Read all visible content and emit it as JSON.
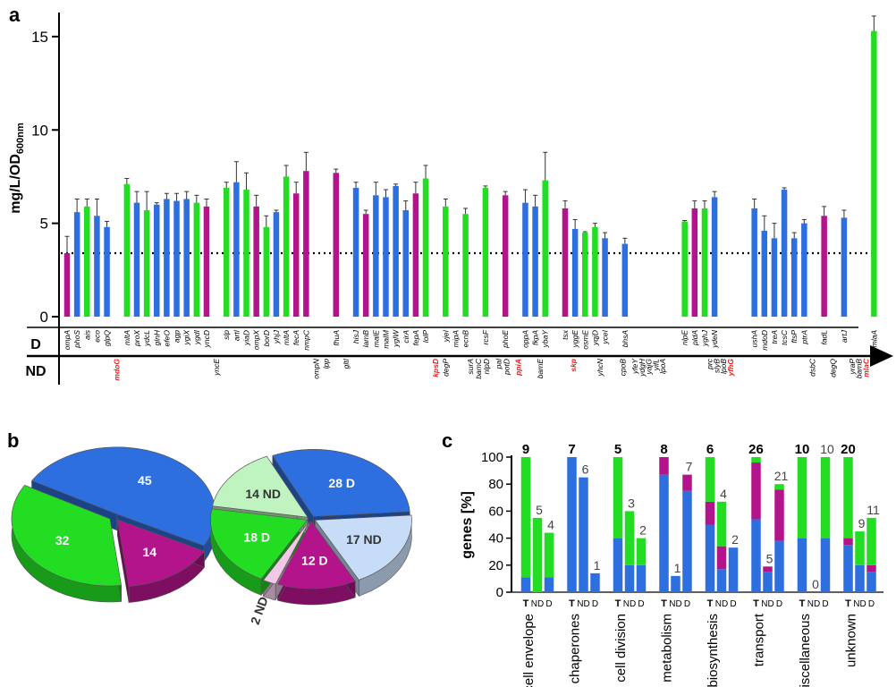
{
  "colors": {
    "blue": "#2e6fe0",
    "green": "#22dd22",
    "magenta": "#b3148b",
    "light_green": "#bff3bf",
    "light_blue": "#c6dcf7",
    "light_pink": "#f2c7e8",
    "red_label": "#e02020"
  },
  "panels": {
    "a": "a",
    "b": "b",
    "c": "c"
  },
  "chart_data": [
    {
      "panel": "a",
      "type": "bar",
      "ylabel": "mg/L/OD",
      "ylabel_sub": "600nm",
      "ylim": [
        0,
        16
      ],
      "yticks": [
        0,
        5,
        10,
        15
      ],
      "threshold": 3.4,
      "row_labels": {
        "d": "D",
        "nd": "ND"
      },
      "bars": [
        {
          "g": "ompA",
          "v": 3.4,
          "e": 0.9,
          "c": "magenta"
        },
        {
          "g": "phoS",
          "v": 5.6,
          "e": 0.7,
          "c": "blue"
        },
        {
          "g": "ais",
          "v": 5.9,
          "e": 0.4,
          "c": "green"
        },
        {
          "g": "eco",
          "v": 5.4,
          "e": 0.9,
          "c": "blue"
        },
        {
          "g": "glpQ",
          "v": 4.8,
          "e": 0.3,
          "c": "blue"
        },
        {
          "g": "",
          "v": 0,
          "e": 0,
          "c": "none"
        },
        {
          "g": "mltA",
          "v": 7.1,
          "e": 0.3,
          "c": "green"
        },
        {
          "g": "proX",
          "v": 6.1,
          "e": 0.6,
          "c": "blue"
        },
        {
          "g": "ydcL",
          "v": 5.7,
          "e": 1.0,
          "c": "green"
        },
        {
          "g": "glnH",
          "v": 6.0,
          "e": 0.1,
          "c": "blue"
        },
        {
          "g": "efeO",
          "v": 6.3,
          "e": 0.3,
          "c": "blue"
        },
        {
          "g": "agp",
          "v": 6.2,
          "e": 0.4,
          "c": "blue"
        },
        {
          "g": "ygiX",
          "v": 6.3,
          "e": 0.4,
          "c": "blue"
        },
        {
          "g": "ygdI",
          "v": 6.1,
          "e": 0.4,
          "c": "green"
        },
        {
          "g": "yncD",
          "v": 5.9,
          "e": 0.4,
          "c": "magenta"
        },
        {
          "g": "",
          "v": 0,
          "e": 0,
          "c": "none"
        },
        {
          "g": "slp",
          "v": 6.9,
          "e": 0.3,
          "c": "green"
        },
        {
          "g": "artI",
          "v": 7.2,
          "e": 1.1,
          "c": "blue"
        },
        {
          "g": "yiaD",
          "v": 6.8,
          "e": 0.9,
          "c": "green"
        },
        {
          "g": "ompX",
          "v": 5.9,
          "e": 0.6,
          "c": "magenta"
        },
        {
          "g": "borD",
          "v": 4.8,
          "e": 0.6,
          "c": "green"
        },
        {
          "g": "yhjJ",
          "v": 5.6,
          "e": 0.1,
          "c": "blue"
        },
        {
          "g": "mltA",
          "v": 7.5,
          "e": 0.6,
          "c": "green"
        },
        {
          "g": "fecA",
          "v": 6.6,
          "e": 0.6,
          "c": "magenta"
        },
        {
          "g": "nmpC",
          "v": 7.8,
          "e": 1.0,
          "c": "magenta"
        },
        {
          "g": "",
          "v": 0,
          "e": 0,
          "c": "none"
        },
        {
          "g": "",
          "v": 0,
          "e": 0,
          "c": "none"
        },
        {
          "g": "fhuA",
          "v": 7.7,
          "e": 0.2,
          "c": "magenta"
        },
        {
          "g": "",
          "v": 0,
          "e": 0,
          "c": "none"
        },
        {
          "g": "hisJ",
          "v": 6.9,
          "e": 0.3,
          "c": "blue"
        },
        {
          "g": "lamB",
          "v": 5.5,
          "e": 0.2,
          "c": "magenta"
        },
        {
          "g": "malE",
          "v": 6.5,
          "e": 0.7,
          "c": "blue"
        },
        {
          "g": "malM",
          "v": 6.4,
          "e": 0.4,
          "c": "blue"
        },
        {
          "g": "yglW",
          "v": 7.0,
          "e": 0.1,
          "c": "blue"
        },
        {
          "g": "cirA",
          "v": 5.7,
          "e": 0.5,
          "c": "blue"
        },
        {
          "g": "fepA",
          "v": 6.6,
          "e": 0.6,
          "c": "magenta"
        },
        {
          "g": "lolP",
          "v": 7.4,
          "e": 0.7,
          "c": "green"
        },
        {
          "g": "",
          "v": 0,
          "e": 0,
          "c": "none"
        },
        {
          "g": "yjeI",
          "v": 5.9,
          "e": 0.4,
          "c": "green"
        },
        {
          "g": "mipA",
          "v": 0,
          "e": 0,
          "c": "none"
        },
        {
          "g": "ecnB",
          "v": 5.5,
          "e": 0.3,
          "c": "green"
        },
        {
          "g": "",
          "v": 0,
          "e": 0,
          "c": "none"
        },
        {
          "g": "rcsF",
          "v": 6.9,
          "e": 0.1,
          "c": "green"
        },
        {
          "g": "",
          "v": 0,
          "e": 0,
          "c": "none"
        },
        {
          "g": "phoE",
          "v": 6.5,
          "e": 0.2,
          "c": "magenta"
        },
        {
          "g": "",
          "v": 0,
          "e": 0,
          "c": "none"
        },
        {
          "g": "oppA",
          "v": 6.1,
          "e": 0.7,
          "c": "blue"
        },
        {
          "g": "fkpA",
          "v": 5.9,
          "e": 0.6,
          "c": "blue"
        },
        {
          "g": "ybaY",
          "v": 7.3,
          "e": 1.5,
          "c": "green"
        },
        {
          "g": "",
          "v": 0,
          "e": 0,
          "c": "none"
        },
        {
          "g": "tsx",
          "v": 5.8,
          "e": 0.4,
          "c": "magenta"
        },
        {
          "g": "yggE",
          "v": 4.7,
          "e": 0.5,
          "c": "blue"
        },
        {
          "g": "osmE",
          "v": 4.5,
          "e": 0.05,
          "c": "green"
        },
        {
          "g": "yqjD",
          "v": 4.8,
          "e": 0.2,
          "c": "green"
        },
        {
          "g": "yceI",
          "v": 4.2,
          "e": 0.3,
          "c": "blue"
        },
        {
          "g": "",
          "v": 0,
          "e": 0,
          "c": "none"
        },
        {
          "g": "bhsA",
          "v": 3.9,
          "e": 0.3,
          "c": "blue"
        },
        {
          "g": "",
          "v": 0,
          "e": 0,
          "c": "none"
        },
        {
          "g": "",
          "v": 0,
          "e": 0,
          "c": "none"
        },
        {
          "g": "",
          "v": 0,
          "e": 0,
          "c": "none"
        },
        {
          "g": "",
          "v": 0,
          "e": 0,
          "c": "none"
        },
        {
          "g": "",
          "v": 0,
          "e": 0,
          "c": "none"
        },
        {
          "g": "nlpE",
          "v": 5.1,
          "e": 0.05,
          "c": "green"
        },
        {
          "g": "pldA",
          "v": 5.8,
          "e": 0.4,
          "c": "magenta"
        },
        {
          "g": "yghJ",
          "v": 5.8,
          "e": 0.4,
          "c": "green"
        },
        {
          "g": "ydeN",
          "v": 6.4,
          "e": 0.3,
          "c": "blue"
        },
        {
          "g": "",
          "v": 0,
          "e": 0,
          "c": "none"
        },
        {
          "g": "",
          "v": 0,
          "e": 0,
          "c": "none"
        },
        {
          "g": "",
          "v": 0,
          "e": 0,
          "c": "none"
        },
        {
          "g": "ushA",
          "v": 5.8,
          "e": 0.5,
          "c": "blue"
        },
        {
          "g": "mdoD",
          "v": 4.6,
          "e": 0.8,
          "c": "blue"
        },
        {
          "g": "treA",
          "v": 4.2,
          "e": 0.8,
          "c": "blue"
        },
        {
          "g": "tcsC",
          "v": 6.8,
          "e": 0.1,
          "c": "blue"
        },
        {
          "g": "ftsP",
          "v": 4.2,
          "e": 0.3,
          "c": "blue"
        },
        {
          "g": "ptrA",
          "v": 5.0,
          "e": 0.2,
          "c": "blue"
        },
        {
          "g": "",
          "v": 0,
          "e": 0,
          "c": "none"
        },
        {
          "g": "fadL",
          "v": 5.4,
          "e": 0.5,
          "c": "magenta"
        },
        {
          "g": "",
          "v": 0,
          "e": 0,
          "c": "none"
        },
        {
          "g": "artJ",
          "v": 5.3,
          "e": 0.4,
          "c": "blue"
        },
        {
          "g": "",
          "v": 0,
          "e": 0,
          "c": "none"
        },
        {
          "g": "",
          "v": 0,
          "e": 0,
          "c": "none"
        },
        {
          "g": "mlaA",
          "v": 15.3,
          "e": 0.8,
          "c": "green"
        }
      ],
      "nd_labels": [
        {
          "g": "mdoG",
          "i": 5,
          "red": true
        },
        {
          "g": "yncE",
          "i": 15,
          "red": false
        },
        {
          "g": "ompN",
          "i": 25,
          "red": false
        },
        {
          "g": "lpp",
          "i": 26,
          "red": false
        },
        {
          "g": "gltI",
          "i": 28,
          "red": false
        },
        {
          "g": "kpsD",
          "i": 37,
          "red": true
        },
        {
          "g": "degP",
          "i": 38,
          "red": false
        },
        {
          "g": "surA",
          "i": 40.5,
          "red": false
        },
        {
          "g": "bamC",
          "i": 41.3,
          "red": false
        },
        {
          "g": "nlpD",
          "i": 42.1,
          "red": false
        },
        {
          "g": "pal",
          "i": 43.3,
          "red": false
        },
        {
          "g": "potD",
          "i": 44.1,
          "red": false
        },
        {
          "g": "ppiA",
          "i": 45.3,
          "red": true
        },
        {
          "g": "bamE",
          "i": 47.5,
          "red": false
        },
        {
          "g": "skp",
          "i": 50.8,
          "red": true
        },
        {
          "g": "yhcN",
          "i": 53.5,
          "red": false
        },
        {
          "g": "cpoB",
          "i": 55.8,
          "red": false
        },
        {
          "g": "yfeY",
          "i": 57,
          "red": false
        },
        {
          "g": "ydgH",
          "i": 57.7,
          "red": false
        },
        {
          "g": "yajG",
          "i": 58.4,
          "red": false
        },
        {
          "g": "yifL",
          "i": 59.1,
          "red": false
        },
        {
          "g": "lpoA",
          "i": 59.8,
          "red": false
        },
        {
          "g": "prc",
          "i": 64.5,
          "red": false
        },
        {
          "g": "slyB",
          "i": 65.2,
          "red": false
        },
        {
          "g": "lpoB",
          "i": 65.9,
          "red": false
        },
        {
          "g": "yfhG",
          "i": 66.6,
          "red": true
        },
        {
          "g": "dsbC",
          "i": 74.8,
          "red": false
        },
        {
          "g": "degQ",
          "i": 76.9,
          "red": false
        },
        {
          "g": "yraP",
          "i": 78.8,
          "red": false
        },
        {
          "g": "bamB",
          "i": 79.5,
          "red": false
        },
        {
          "g": "mlaC",
          "i": 80.2,
          "red": true
        }
      ]
    },
    {
      "panel": "b",
      "type": "pie",
      "pies": [
        {
          "slices": [
            {
              "label": "45",
              "value": 45,
              "color": "blue"
            },
            {
              "label": "14",
              "value": 14,
              "color": "magenta"
            },
            {
              "label": "32",
              "value": 32,
              "color": "green"
            }
          ]
        },
        {
          "slices": [
            {
              "label": "28 D",
              "value": 28,
              "color": "blue"
            },
            {
              "label": "17 ND",
              "value": 17,
              "color": "light_blue"
            },
            {
              "label": "12 D",
              "value": 12,
              "color": "magenta"
            },
            {
              "label": "2 ND",
              "value": 2,
              "color": "light_pink"
            },
            {
              "label": "18 D",
              "value": 18,
              "color": "green"
            },
            {
              "label": "14 ND",
              "value": 14,
              "color": "light_green"
            }
          ]
        }
      ]
    },
    {
      "panel": "c",
      "type": "bar",
      "stacked": true,
      "ylabel": "genes [%]",
      "ylim": [
        0,
        100
      ],
      "yticks": [
        0,
        20,
        40,
        60,
        80,
        100
      ],
      "bar_labels": [
        "T",
        "ND",
        "D"
      ],
      "groups": [
        {
          "name": "cell envelope",
          "counts": [
            "9",
            "5",
            "4"
          ],
          "bars": [
            {
              "blue": 11,
              "magenta": 0,
              "green": 89,
              "height": 100
            },
            {
              "blue": 0,
              "magenta": 0,
              "green": 55,
              "height": 55
            },
            {
              "blue": 11,
              "magenta": 0,
              "green": 33,
              "height": 44
            }
          ]
        },
        {
          "name": "chaperones",
          "counts": [
            "7",
            "6",
            "1"
          ],
          "bars": [
            {
              "blue": 100,
              "magenta": 0,
              "green": 0,
              "height": 100
            },
            {
              "blue": 85,
              "magenta": 0,
              "green": 0,
              "height": 85
            },
            {
              "blue": 14,
              "magenta": 0,
              "green": 0,
              "height": 14
            }
          ]
        },
        {
          "name": "cell division",
          "counts": [
            "5",
            "3",
            "2"
          ],
          "bars": [
            {
              "blue": 40,
              "magenta": 0,
              "green": 60,
              "height": 100
            },
            {
              "blue": 20,
              "magenta": 0,
              "green": 40,
              "height": 60
            },
            {
              "blue": 20,
              "magenta": 0,
              "green": 20,
              "height": 40
            }
          ]
        },
        {
          "name": "metabolism",
          "counts": [
            "8",
            "1",
            "7"
          ],
          "bars": [
            {
              "blue": 87,
              "magenta": 13,
              "green": 0,
              "height": 100
            },
            {
              "blue": 12,
              "magenta": 0,
              "green": 0,
              "height": 12
            },
            {
              "blue": 75,
              "magenta": 12,
              "green": 0,
              "height": 87
            }
          ]
        },
        {
          "name": "biosynthesis",
          "counts": [
            "6",
            "4",
            "2"
          ],
          "bars": [
            {
              "blue": 50,
              "magenta": 17,
              "green": 33,
              "height": 100
            },
            {
              "blue": 17,
              "magenta": 17,
              "green": 33,
              "height": 67
            },
            {
              "blue": 33,
              "magenta": 0,
              "green": 0,
              "height": 33
            }
          ]
        },
        {
          "name": "transport",
          "counts": [
            "26",
            "5",
            "21"
          ],
          "bars": [
            {
              "blue": 54,
              "magenta": 42,
              "green": 4,
              "height": 100
            },
            {
              "blue": 15,
              "magenta": 4,
              "green": 0,
              "height": 19
            },
            {
              "blue": 38,
              "magenta": 38,
              "green": 4,
              "height": 80
            }
          ]
        },
        {
          "name": "miscellaneous",
          "counts": [
            "10",
            "0",
            "10"
          ],
          "bars": [
            {
              "blue": 40,
              "magenta": 0,
              "green": 60,
              "height": 100
            },
            {
              "blue": 0,
              "magenta": 0,
              "green": 0,
              "height": 0
            },
            {
              "blue": 40,
              "magenta": 0,
              "green": 60,
              "height": 100
            }
          ]
        },
        {
          "name": "unknown",
          "counts": [
            "20",
            "9",
            "11"
          ],
          "bars": [
            {
              "blue": 35,
              "magenta": 5,
              "green": 60,
              "height": 100
            },
            {
              "blue": 20,
              "magenta": 0,
              "green": 25,
              "height": 45
            },
            {
              "blue": 15,
              "magenta": 5,
              "green": 35,
              "height": 55
            }
          ]
        }
      ]
    }
  ]
}
